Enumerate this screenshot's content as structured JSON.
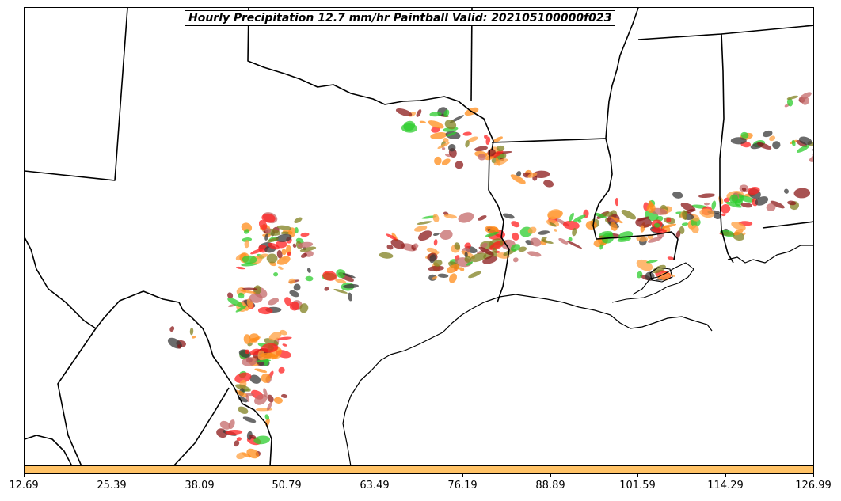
{
  "title": "Hourly Precipitation 12.7 mm/hr Paintball Valid: 202105100000f023",
  "colorbar": {
    "color": "#ffc266",
    "tick_labels": [
      "12.69",
      "25.39",
      "38.09",
      "50.79",
      "63.49",
      "76.19",
      "88.89",
      "101.59",
      "114.29",
      "126.99"
    ]
  },
  "member_colors": [
    "#ff2020",
    "#ff8c1a",
    "#8b1a1a",
    "#808020",
    "#2ecc2e",
    "#3a3a3a",
    "#c46a6a",
    "#ffa040"
  ],
  "map_features": [
    "state-borders",
    "coastline",
    "country-border"
  ]
}
